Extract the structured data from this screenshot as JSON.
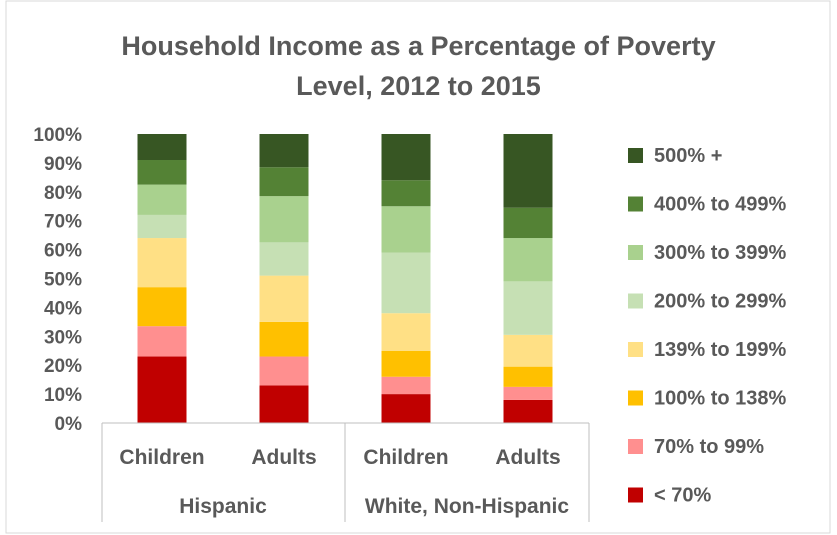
{
  "chart_data": {
    "type": "bar",
    "stacked": true,
    "percent_stacked": true,
    "title_lines": [
      "Household Income as a Percentage of Poverty",
      "Level, 2012 to 2015"
    ],
    "groups": [
      {
        "label": "Hispanic",
        "categories": [
          "Children",
          "Adults"
        ]
      },
      {
        "label": "White, Non-Hispanic",
        "categories": [
          "Children",
          "Adults"
        ]
      }
    ],
    "categories": [
      "Children",
      "Adults",
      "Children",
      "Adults"
    ],
    "series": [
      {
        "name": "< 70%",
        "color": "#c00000",
        "values": [
          23,
          13,
          10,
          8
        ]
      },
      {
        "name": "70% to 99%",
        "color": "#ff8f8f",
        "values": [
          10.5,
          10,
          6,
          4.5
        ]
      },
      {
        "name": "100% to 138%",
        "color": "#ffc000",
        "values": [
          13.5,
          12,
          9,
          7
        ]
      },
      {
        "name": "139% to 199%",
        "color": "#ffe085",
        "values": [
          17,
          16,
          13,
          11
        ]
      },
      {
        "name": "200% to 299%",
        "color": "#c6e0b4",
        "values": [
          8,
          11.5,
          21,
          18.5
        ]
      },
      {
        "name": "300% to 399%",
        "color": "#a9d18e",
        "values": [
          10.5,
          16,
          16,
          15
        ]
      },
      {
        "name": "400% to 499%",
        "color": "#548235",
        "values": [
          8.5,
          10,
          9,
          10.5
        ]
      },
      {
        "name": "500% +",
        "color": "#375623",
        "values": [
          9,
          11.5,
          16,
          25.5
        ]
      }
    ],
    "ylim": [
      0,
      100
    ],
    "yticks": [
      "0%",
      "10%",
      "20%",
      "30%",
      "40%",
      "50%",
      "60%",
      "70%",
      "80%",
      "90%",
      "100%"
    ],
    "grid": false,
    "legend": "right"
  }
}
